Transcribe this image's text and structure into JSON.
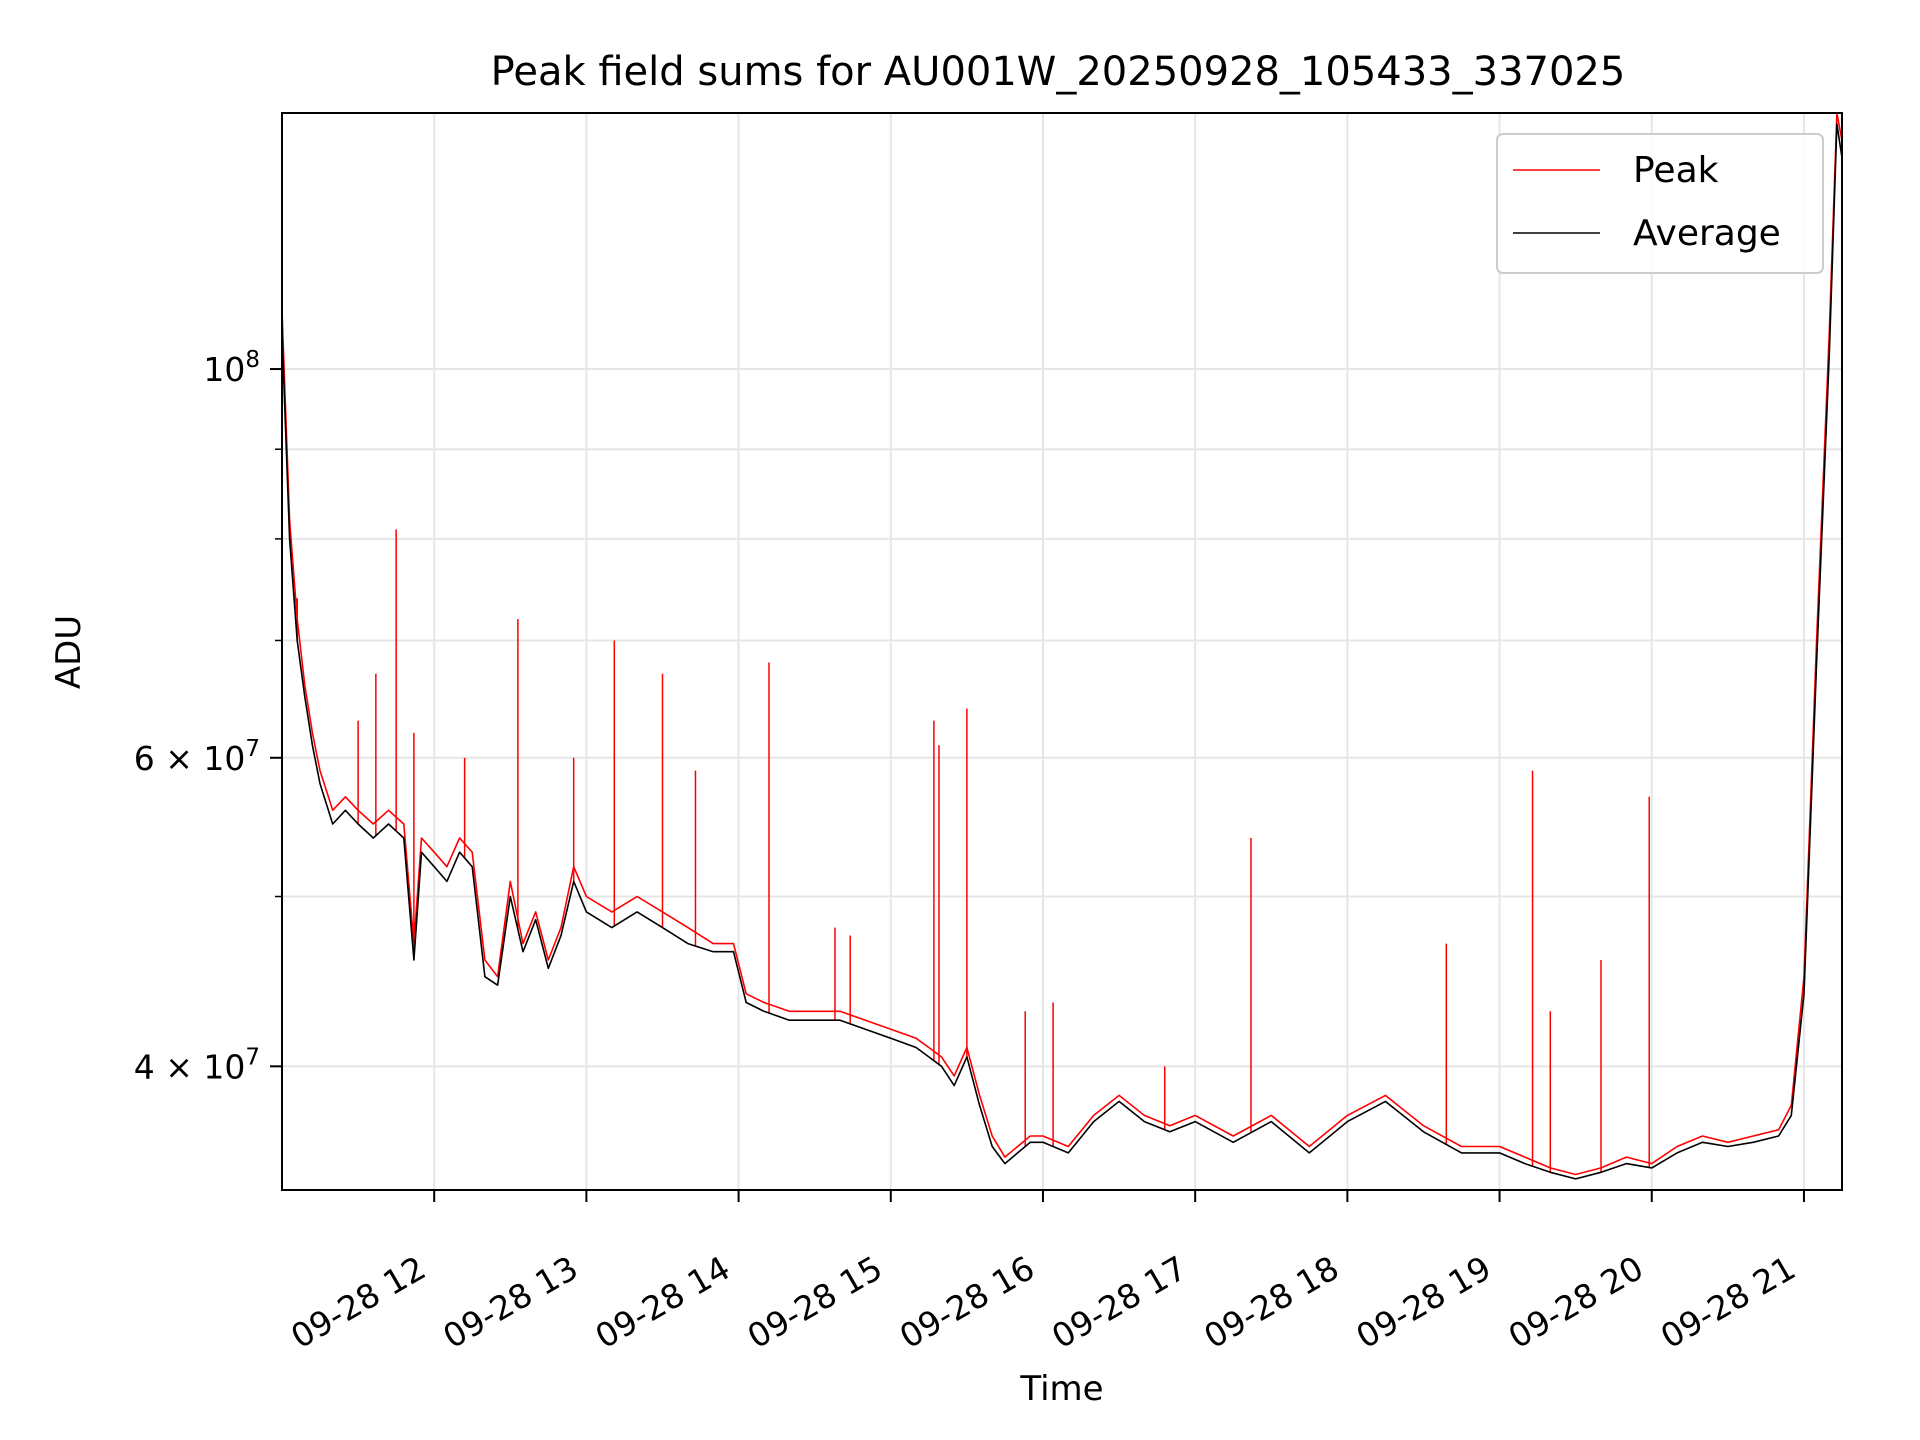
{
  "chart_data": {
    "type": "line",
    "title": "Peak field sums for AU001W_20250928_105433_337025",
    "xlabel": "Time",
    "ylabel": "ADU",
    "yscale": "log",
    "xlim": [
      "2025-09-28 11:00",
      "2025-09-28 21:15"
    ],
    "ylim": [
      34000000,
      140000000
    ],
    "grid": true,
    "legend": "top-right",
    "x_ticks": [
      {
        "label": "09-28 12",
        "value": "2025-09-28 12:00"
      },
      {
        "label": "09-28 13",
        "value": "2025-09-28 13:00"
      },
      {
        "label": "09-28 14",
        "value": "2025-09-28 14:00"
      },
      {
        "label": "09-28 15",
        "value": "2025-09-28 15:00"
      },
      {
        "label": "09-28 16",
        "value": "2025-09-28 16:00"
      },
      {
        "label": "09-28 17",
        "value": "2025-09-28 17:00"
      },
      {
        "label": "09-28 18",
        "value": "2025-09-28 18:00"
      },
      {
        "label": "09-28 19",
        "value": "2025-09-28 19:00"
      },
      {
        "label": "09-28 20",
        "value": "2025-09-28 20:00"
      },
      {
        "label": "09-28 21",
        "value": "2025-09-28 21:00"
      }
    ],
    "y_ticks": [
      {
        "base": "4",
        "exp": "7",
        "value": 40000000
      },
      {
        "base": "6",
        "exp": "7",
        "value": 60000000
      },
      {
        "base": "",
        "exp": "8",
        "value": 100000000
      }
    ],
    "y_minor_ticks": [
      30000000,
      50000000,
      70000000,
      80000000,
      90000000
    ],
    "series": [
      {
        "name": "Peak",
        "color": "#ff0000",
        "x": [
          "2025-09-28 11:00",
          "2025-09-28 11:03",
          "2025-09-28 11:06",
          "2025-09-28 11:09",
          "2025-09-28 11:12",
          "2025-09-28 11:15",
          "2025-09-28 11:20",
          "2025-09-28 11:25",
          "2025-09-28 11:30",
          "2025-09-28 11:36",
          "2025-09-28 11:42",
          "2025-09-28 11:48",
          "2025-09-28 11:52",
          "2025-09-28 11:55",
          "2025-09-28 12:00",
          "2025-09-28 12:05",
          "2025-09-28 12:10",
          "2025-09-28 12:15",
          "2025-09-28 12:20",
          "2025-09-28 12:25",
          "2025-09-28 12:30",
          "2025-09-28 12:35",
          "2025-09-28 12:40",
          "2025-09-28 12:45",
          "2025-09-28 12:50",
          "2025-09-28 12:55",
          "2025-09-28 13:00",
          "2025-09-28 13:10",
          "2025-09-28 13:20",
          "2025-09-28 13:30",
          "2025-09-28 13:40",
          "2025-09-28 13:50",
          "2025-09-28 13:58",
          "2025-09-28 14:03",
          "2025-09-28 14:10",
          "2025-09-28 14:20",
          "2025-09-28 14:30",
          "2025-09-28 14:40",
          "2025-09-28 14:50",
          "2025-09-28 15:00",
          "2025-09-28 15:10",
          "2025-09-28 15:15",
          "2025-09-28 15:20",
          "2025-09-28 15:25",
          "2025-09-28 15:30",
          "2025-09-28 15:35",
          "2025-09-28 15:40",
          "2025-09-28 15:45",
          "2025-09-28 15:50",
          "2025-09-28 15:55",
          "2025-09-28 16:00",
          "2025-09-28 16:10",
          "2025-09-28 16:20",
          "2025-09-28 16:30",
          "2025-09-28 16:40",
          "2025-09-28 16:50",
          "2025-09-28 17:00",
          "2025-09-28 17:15",
          "2025-09-28 17:30",
          "2025-09-28 17:45",
          "2025-09-28 18:00",
          "2025-09-28 18:15",
          "2025-09-28 18:30",
          "2025-09-28 18:45",
          "2025-09-28 19:00",
          "2025-09-28 19:10",
          "2025-09-28 19:20",
          "2025-09-28 19:30",
          "2025-09-28 19:40",
          "2025-09-28 19:50",
          "2025-09-28 20:00",
          "2025-09-28 20:10",
          "2025-09-28 20:20",
          "2025-09-28 20:30",
          "2025-09-28 20:40",
          "2025-09-28 20:50",
          "2025-09-28 20:55",
          "2025-09-28 21:00",
          "2025-09-28 21:05",
          "2025-09-28 21:10",
          "2025-09-28 21:13",
          "2025-09-28 21:15"
        ],
        "y": [
          108000000,
          82000000,
          72000000,
          66000000,
          62000000,
          59000000,
          56000000,
          57000000,
          56000000,
          55000000,
          56000000,
          55000000,
          47000000,
          54000000,
          53000000,
          52000000,
          54000000,
          53000000,
          46000000,
          45000000,
          51000000,
          47000000,
          49000000,
          46000000,
          48000000,
          52000000,
          50000000,
          49000000,
          50000000,
          49000000,
          48000000,
          47000000,
          47000000,
          44000000,
          43500000,
          43000000,
          43000000,
          43000000,
          42500000,
          42000000,
          41500000,
          41000000,
          40500000,
          39500000,
          41000000,
          38500000,
          36500000,
          35500000,
          36000000,
          36500000,
          36500000,
          36000000,
          37500000,
          38500000,
          37500000,
          37000000,
          37500000,
          36500000,
          37500000,
          36000000,
          37500000,
          38500000,
          37000000,
          36000000,
          36000000,
          35500000,
          35000000,
          34700000,
          35000000,
          35500000,
          35200000,
          36000000,
          36500000,
          36200000,
          36500000,
          36800000,
          38000000,
          45000000,
          70000000,
          105000000,
          140000000,
          135000000
        ]
      },
      {
        "name": "Average",
        "color": "#000000",
        "x": [
          "2025-09-28 11:00",
          "2025-09-28 11:03",
          "2025-09-28 11:06",
          "2025-09-28 11:09",
          "2025-09-28 11:12",
          "2025-09-28 11:15",
          "2025-09-28 11:20",
          "2025-09-28 11:25",
          "2025-09-28 11:30",
          "2025-09-28 11:36",
          "2025-09-28 11:42",
          "2025-09-28 11:48",
          "2025-09-28 11:52",
          "2025-09-28 11:55",
          "2025-09-28 12:00",
          "2025-09-28 12:05",
          "2025-09-28 12:10",
          "2025-09-28 12:15",
          "2025-09-28 12:20",
          "2025-09-28 12:25",
          "2025-09-28 12:30",
          "2025-09-28 12:35",
          "2025-09-28 12:40",
          "2025-09-28 12:45",
          "2025-09-28 12:50",
          "2025-09-28 12:55",
          "2025-09-28 13:00",
          "2025-09-28 13:10",
          "2025-09-28 13:20",
          "2025-09-28 13:30",
          "2025-09-28 13:40",
          "2025-09-28 13:50",
          "2025-09-28 13:58",
          "2025-09-28 14:03",
          "2025-09-28 14:10",
          "2025-09-28 14:20",
          "2025-09-28 14:30",
          "2025-09-28 14:40",
          "2025-09-28 14:50",
          "2025-09-28 15:00",
          "2025-09-28 15:10",
          "2025-09-28 15:15",
          "2025-09-28 15:20",
          "2025-09-28 15:25",
          "2025-09-28 15:30",
          "2025-09-28 15:35",
          "2025-09-28 15:40",
          "2025-09-28 15:45",
          "2025-09-28 15:50",
          "2025-09-28 15:55",
          "2025-09-28 16:00",
          "2025-09-28 16:10",
          "2025-09-28 16:20",
          "2025-09-28 16:30",
          "2025-09-28 16:40",
          "2025-09-28 16:50",
          "2025-09-28 17:00",
          "2025-09-28 17:15",
          "2025-09-28 17:30",
          "2025-09-28 17:45",
          "2025-09-28 18:00",
          "2025-09-28 18:15",
          "2025-09-28 18:30",
          "2025-09-28 18:45",
          "2025-09-28 19:00",
          "2025-09-28 19:10",
          "2025-09-28 19:20",
          "2025-09-28 19:30",
          "2025-09-28 19:40",
          "2025-09-28 19:50",
          "2025-09-28 20:00",
          "2025-09-28 20:10",
          "2025-09-28 20:20",
          "2025-09-28 20:30",
          "2025-09-28 20:40",
          "2025-09-28 20:50",
          "2025-09-28 20:55",
          "2025-09-28 21:00",
          "2025-09-28 21:05",
          "2025-09-28 21:10",
          "2025-09-28 21:13",
          "2025-09-28 21:15"
        ],
        "y": [
          105000000,
          80000000,
          70000000,
          65000000,
          61000000,
          58000000,
          55000000,
          56000000,
          55000000,
          54000000,
          55000000,
          54000000,
          46000000,
          53000000,
          52000000,
          51000000,
          53000000,
          52000000,
          45000000,
          44500000,
          50000000,
          46500000,
          48500000,
          45500000,
          47500000,
          51000000,
          49000000,
          48000000,
          49000000,
          48000000,
          47000000,
          46500000,
          46500000,
          43500000,
          43000000,
          42500000,
          42500000,
          42500000,
          42000000,
          41500000,
          41000000,
          40500000,
          40000000,
          39000000,
          40500000,
          38000000,
          36000000,
          35200000,
          35700000,
          36200000,
          36200000,
          35700000,
          37200000,
          38200000,
          37200000,
          36700000,
          37200000,
          36200000,
          37200000,
          35700000,
          37200000,
          38200000,
          36700000,
          35700000,
          35700000,
          35200000,
          34800000,
          34500000,
          34800000,
          35200000,
          35000000,
          35700000,
          36200000,
          36000000,
          36200000,
          36500000,
          37500000,
          44000000,
          68000000,
          102000000,
          138000000,
          132000000
        ]
      }
    ],
    "spikes": [
      {
        "x": "2025-09-28 11:06",
        "y": 74000000
      },
      {
        "x": "2025-09-28 11:30",
        "y": 63000000
      },
      {
        "x": "2025-09-28 11:37",
        "y": 67000000
      },
      {
        "x": "2025-09-28 11:45",
        "y": 81000000
      },
      {
        "x": "2025-09-28 11:52",
        "y": 62000000
      },
      {
        "x": "2025-09-28 12:12",
        "y": 60000000
      },
      {
        "x": "2025-09-28 12:33",
        "y": 72000000
      },
      {
        "x": "2025-09-28 12:55",
        "y": 60000000
      },
      {
        "x": "2025-09-28 13:11",
        "y": 70000000
      },
      {
        "x": "2025-09-28 13:30",
        "y": 67000000
      },
      {
        "x": "2025-09-28 13:43",
        "y": 59000000
      },
      {
        "x": "2025-09-28 14:12",
        "y": 68000000
      },
      {
        "x": "2025-09-28 14:38",
        "y": 48000000
      },
      {
        "x": "2025-09-28 14:44",
        "y": 47500000
      },
      {
        "x": "2025-09-28 15:17",
        "y": 63000000
      },
      {
        "x": "2025-09-28 15:19",
        "y": 61000000
      },
      {
        "x": "2025-09-28 15:30",
        "y": 64000000
      },
      {
        "x": "2025-09-28 15:53",
        "y": 43000000
      },
      {
        "x": "2025-09-28 16:04",
        "y": 43500000
      },
      {
        "x": "2025-09-28 16:48",
        "y": 40000000
      },
      {
        "x": "2025-09-28 17:22",
        "y": 54000000
      },
      {
        "x": "2025-09-28 18:39",
        "y": 47000000
      },
      {
        "x": "2025-09-28 19:13",
        "y": 59000000
      },
      {
        "x": "2025-09-28 19:20",
        "y": 43000000
      },
      {
        "x": "2025-09-28 19:40",
        "y": 46000000
      },
      {
        "x": "2025-09-28 19:59",
        "y": 57000000
      }
    ]
  }
}
